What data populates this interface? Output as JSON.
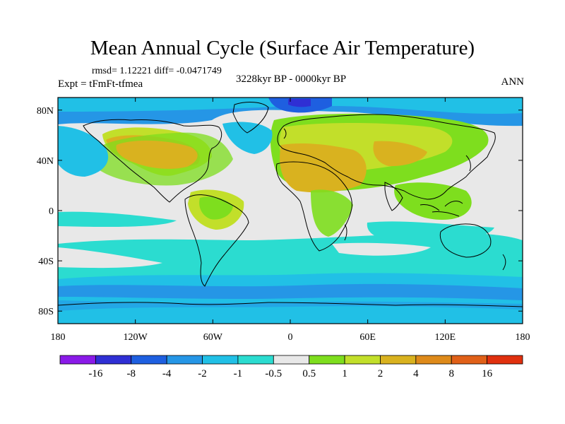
{
  "title": "Mean Annual Cycle (Surface Air Temperature)",
  "stats": "rmsd= 1.12221 diff= -0.0471749",
  "experiment": "Expt = tFmFt-tfmea",
  "period": "3228kyr BP - 0000kyr BP",
  "season": "ANN",
  "map": {
    "projection": "cylindrical equidistant",
    "lon_range": [
      -180,
      180
    ],
    "lat_range": [
      -90,
      90
    ],
    "lat_ticks": [
      {
        "label": "80N",
        "lat": 80
      },
      {
        "label": "40N",
        "lat": 40
      },
      {
        "label": "0",
        "lat": 0
      },
      {
        "label": "40S",
        "lat": -40
      },
      {
        "label": "80S",
        "lat": -80
      }
    ],
    "lon_ticks": [
      {
        "label": "180",
        "lon": -180
      },
      {
        "label": "120W",
        "lon": -120
      },
      {
        "label": "60W",
        "lon": -60
      },
      {
        "label": "0",
        "lon": 0
      },
      {
        "label": "60E",
        "lon": 60
      },
      {
        "label": "120E",
        "lon": 120
      },
      {
        "label": "180",
        "lon": 180
      }
    ]
  },
  "colorbar": {
    "labels": [
      "-16",
      "-8",
      "-4",
      "-2",
      "-1",
      "-0.5",
      "0.5",
      "1",
      "2",
      "4",
      "8",
      "16"
    ],
    "colors": [
      "#8a1ae8",
      "#2f2fd4",
      "#1e5fe0",
      "#2596e6",
      "#21c0e6",
      "#2bdcd0",
      "#e8e8e8",
      "#7ede1e",
      "#c2df2a",
      "#d9b21f",
      "#de8a1a",
      "#e06018",
      "#e0300e"
    ]
  }
}
